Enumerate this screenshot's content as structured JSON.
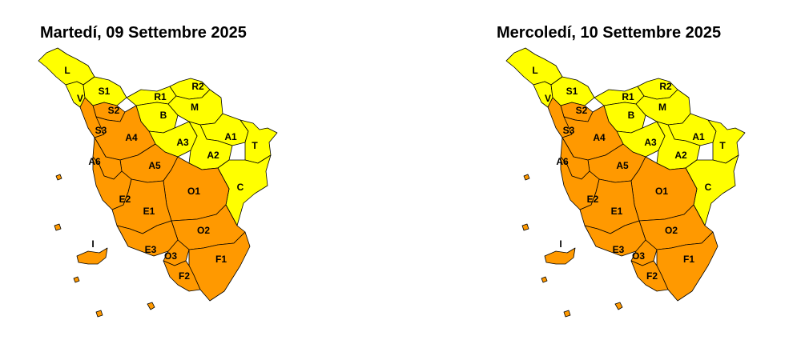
{
  "colors": {
    "yellow": "#ffff00",
    "orange": "#ff9900",
    "border": "#000000"
  },
  "maps": [
    {
      "title": "Martedí, 09 Settembre 2025",
      "zones": {
        "L": "yellow",
        "V": "yellow",
        "S1": "yellow",
        "S2": "orange",
        "S3": "orange",
        "R1": "yellow",
        "R2": "yellow",
        "B": "yellow",
        "M": "yellow",
        "A1": "yellow",
        "A2": "yellow",
        "A3": "yellow",
        "A4": "orange",
        "A5": "orange",
        "A6": "orange",
        "T": "yellow",
        "C": "yellow",
        "O1": "orange",
        "O2": "orange",
        "O3": "orange",
        "E1": "orange",
        "E2": "orange",
        "E3": "orange",
        "F1": "orange",
        "F2": "orange",
        "I": "orange"
      }
    },
    {
      "title": "Mercoledí, 10 Settembre 2025",
      "zones": {
        "L": "yellow",
        "V": "yellow",
        "S1": "yellow",
        "S2": "orange",
        "S3": "orange",
        "R1": "yellow",
        "R2": "yellow",
        "B": "yellow",
        "M": "yellow",
        "A1": "yellow",
        "A2": "yellow",
        "A3": "yellow",
        "A4": "orange",
        "A5": "orange",
        "A6": "orange",
        "T": "yellow",
        "C": "yellow",
        "O1": "orange",
        "O2": "orange",
        "O3": "orange",
        "E1": "orange",
        "E2": "orange",
        "E3": "orange",
        "F1": "orange",
        "F2": "orange",
        "I": "orange"
      }
    }
  ]
}
